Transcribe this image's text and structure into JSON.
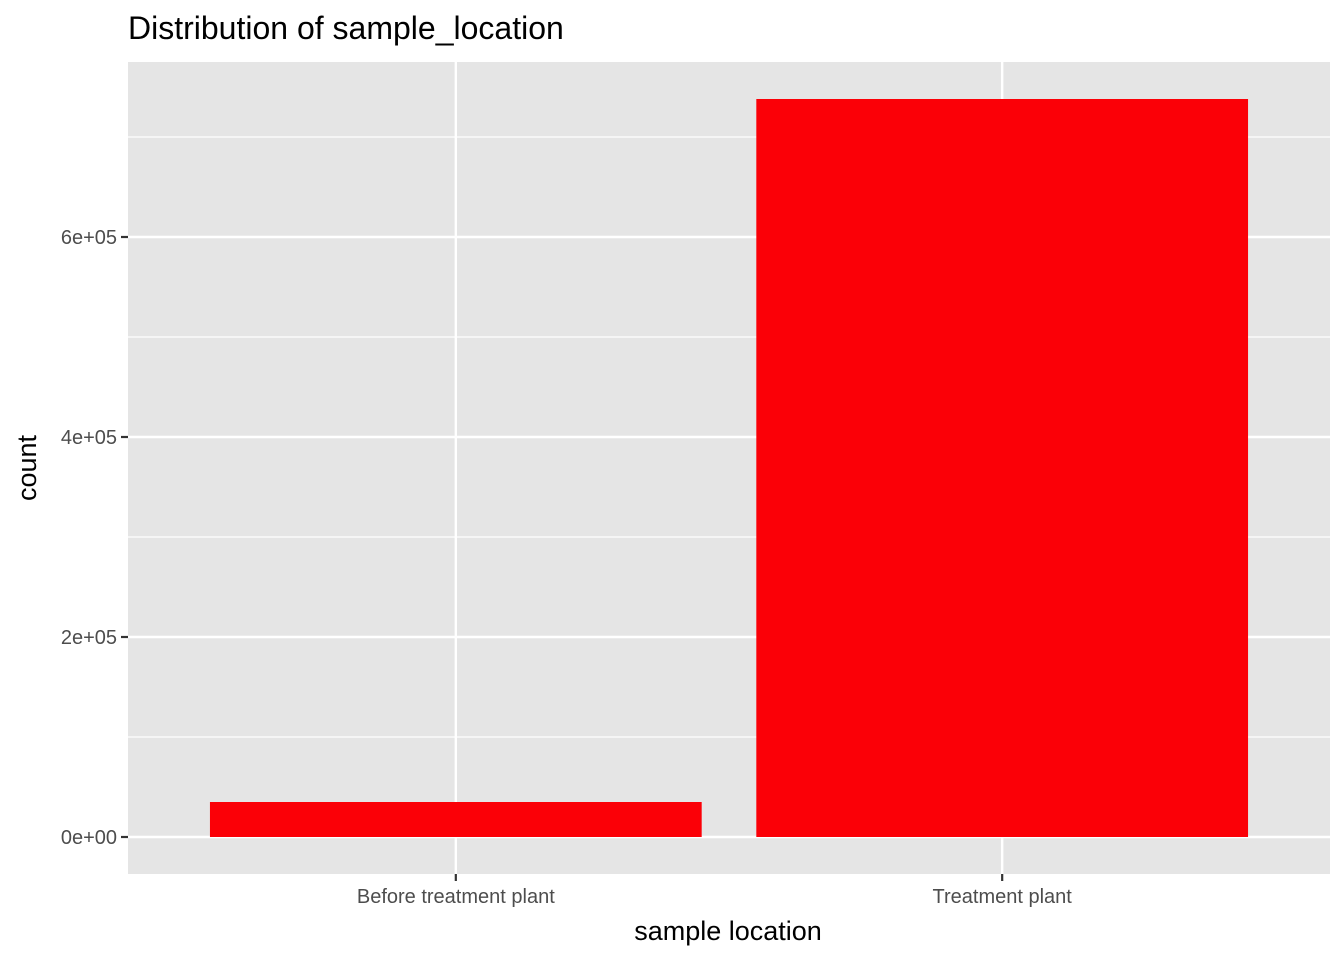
{
  "chart_data": {
    "type": "bar",
    "title": "Distribution of sample_location",
    "xlabel": "sample location",
    "ylabel": "count",
    "categories": [
      "Before treatment plant",
      "Treatment plant"
    ],
    "values": [
      35000,
      738000
    ],
    "ylim": [
      -37000,
      775000
    ],
    "yticks": [
      0,
      200000,
      400000,
      600000
    ],
    "ytick_labels": [
      "0e+00",
      "2e+05",
      "4e+05",
      "6e+05"
    ],
    "bar_color": "#fb0007",
    "panel_color": "#e5e5e5",
    "grid_color": "#ffffff",
    "grid": true,
    "legend": "none"
  }
}
